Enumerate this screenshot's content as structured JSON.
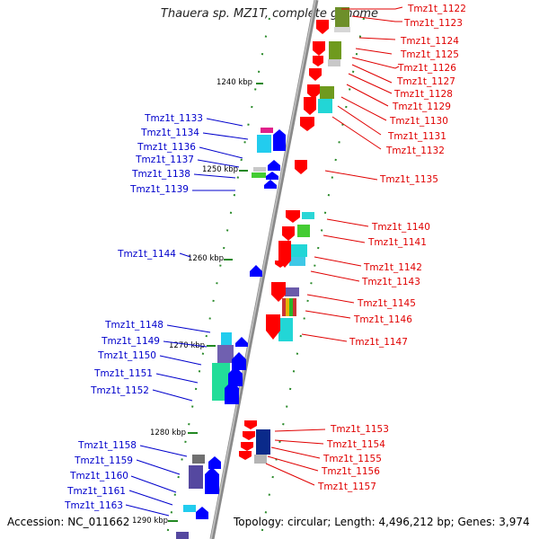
{
  "title": "Thauera sp. MZ1T, complete genome",
  "footer": {
    "accession": "Accession: NC_011662",
    "info": "Topology: circular; Length: 4,496,212 bp; Genes: 3,974"
  },
  "colors": {
    "forward_label": "#e00000",
    "reverse_label": "#0000cc",
    "forward_gene": "#ff0000",
    "reverse_gene": "#0000ff",
    "backbone": "#8a8a8a",
    "scale_tick": "#228822"
  },
  "scale_labels": [
    "1240 kbp",
    "1250 kbp",
    "1260 kbp",
    "1270 kbp",
    "1280 kbp",
    "1290 kbp"
  ],
  "genes_right": [
    "Tmz1t_1122",
    "Tmz1t_1123",
    "Tmz1t_1124",
    "Tmz1t_1125",
    "Tmz1t_1126",
    "Tmz1t_1127",
    "Tmz1t_1128",
    "Tmz1t_1129",
    "Tmz1t_1130",
    "Tmz1t_1131",
    "Tmz1t_1132",
    "Tmz1t_1135",
    "Tmz1t_1140",
    "Tmz1t_1141",
    "Tmz1t_1142",
    "Tmz1t_1143",
    "Tmz1t_1145",
    "Tmz1t_1146",
    "Tmz1t_1147",
    "Tmz1t_1153",
    "Tmz1t_1154",
    "Tmz1t_1155",
    "Tmz1t_1156",
    "Tmz1t_1157"
  ],
  "genes_left": [
    "Tmz1t_1133",
    "Tmz1t_1134",
    "Tmz1t_1136",
    "Tmz1t_1137",
    "Tmz1t_1138",
    "Tmz1t_1139",
    "Tmz1t_1144",
    "Tmz1t_1148",
    "Tmz1t_1149",
    "Tmz1t_1150",
    "Tmz1t_1151",
    "Tmz1t_1152",
    "Tmz1t_1158",
    "Tmz1t_1159",
    "Tmz1t_1160",
    "Tmz1t_1161",
    "Tmz1t_1163"
  ]
}
